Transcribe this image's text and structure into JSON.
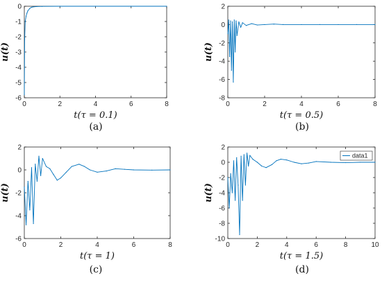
{
  "colors": {
    "series": "#0072BD",
    "axis": "#262626",
    "background": "#ffffff"
  },
  "chart_data": [
    {
      "type": "line",
      "panel_label": "(a)",
      "xlabel": "t(τ = 0.1)",
      "ylabel": "u(t)",
      "xlim": [
        0,
        8
      ],
      "ylim": [
        -6,
        0
      ],
      "xticks": [
        "0",
        "2",
        "4",
        "6",
        "8"
      ],
      "yticks": [
        "-6",
        "-5",
        "-4",
        "-3",
        "-2",
        "-1",
        "0"
      ],
      "legend": [],
      "series": [
        {
          "x": [
            0,
            0.02,
            0.05,
            0.1,
            0.15,
            0.2,
            0.3,
            0.4,
            0.5,
            0.7,
            1.0,
            2,
            4,
            6,
            8
          ],
          "y": [
            -5.8,
            -2.2,
            -1.0,
            -0.65,
            -0.45,
            -0.3,
            -0.15,
            -0.07,
            -0.04,
            -0.02,
            -0.01,
            0,
            0,
            0,
            0
          ]
        }
      ]
    },
    {
      "type": "line",
      "panel_label": "(b)",
      "xlabel": "t(τ = 0.5)",
      "ylabel": "u(t)",
      "xlim": [
        0,
        8
      ],
      "ylim": [
        -8,
        2
      ],
      "xticks": [
        "0",
        "2",
        "4",
        "6",
        "8"
      ],
      "yticks": [
        "-8",
        "-6",
        "-4",
        "-2",
        "0",
        "2"
      ],
      "legend": [],
      "series": [
        {
          "x": [
            0,
            0.05,
            0.1,
            0.15,
            0.2,
            0.25,
            0.3,
            0.35,
            0.4,
            0.45,
            0.5,
            0.6,
            0.7,
            0.8,
            1.0,
            1.3,
            1.6,
            2.0,
            2.5,
            3,
            4,
            5,
            6,
            7,
            8
          ],
          "y": [
            -1.0,
            0.5,
            -3.5,
            0.4,
            -5.0,
            0.3,
            -6.3,
            0.5,
            -3.0,
            0.4,
            -1.2,
            0.3,
            -0.3,
            0.2,
            -0.1,
            0.1,
            -0.05,
            0.0,
            0.05,
            0.0,
            0.0,
            0.0,
            0.0,
            0.0,
            0.0
          ]
        }
      ]
    },
    {
      "type": "line",
      "panel_label": "(c)",
      "xlabel": "t(τ = 1)",
      "ylabel": "u(t)",
      "xlim": [
        0,
        8
      ],
      "ylim": [
        -6,
        2
      ],
      "xticks": [
        "0",
        "2",
        "4",
        "6",
        "8"
      ],
      "yticks": [
        "-6",
        "-4",
        "-2",
        "0",
        "2"
      ],
      "legend": [],
      "series": [
        {
          "x": [
            0,
            0.1,
            0.2,
            0.3,
            0.4,
            0.5,
            0.6,
            0.7,
            0.8,
            0.9,
            1.0,
            1.2,
            1.4,
            1.6,
            1.8,
            2.0,
            2.3,
            2.6,
            3.0,
            3.3,
            3.6,
            4.0,
            4.5,
            5.0,
            5.5,
            6.0,
            7.0,
            8.0
          ],
          "y": [
            -1.5,
            -4.8,
            -1.0,
            -3.5,
            0.2,
            -4.7,
            0.5,
            -1.0,
            1.2,
            -0.5,
            1.0,
            0.3,
            0.1,
            -0.4,
            -0.9,
            -0.7,
            -0.2,
            0.3,
            0.5,
            0.3,
            0.0,
            -0.2,
            -0.1,
            0.1,
            0.05,
            0.0,
            -0.02,
            0.0
          ]
        }
      ]
    },
    {
      "type": "line",
      "panel_label": "(d)",
      "xlabel": "t(τ = 1.5)",
      "ylabel": "u(t)",
      "xlim": [
        0,
        10
      ],
      "ylim": [
        -10,
        2
      ],
      "xticks": [
        "0",
        "2",
        "4",
        "6",
        "8",
        "10"
      ],
      "yticks": [
        "-10",
        "-8",
        "-6",
        "-4",
        "-2",
        "0",
        "2"
      ],
      "legend": [
        "data1"
      ],
      "series": [
        {
          "x": [
            0,
            0.1,
            0.2,
            0.3,
            0.4,
            0.5,
            0.6,
            0.7,
            0.8,
            0.9,
            1.0,
            1.1,
            1.2,
            1.3,
            1.4,
            1.5,
            1.7,
            2.0,
            2.3,
            2.6,
            3.0,
            3.3,
            3.6,
            4.0,
            4.5,
            5.0,
            5.5,
            6.0,
            7.0,
            8.0,
            9.0,
            10.0
          ],
          "y": [
            -2.0,
            -6.0,
            -1.5,
            -4.0,
            0.2,
            -5.0,
            0.6,
            -3.0,
            -9.5,
            0.8,
            -5.0,
            1.0,
            -3.0,
            1.2,
            -0.5,
            0.9,
            0.4,
            0.0,
            -0.5,
            -0.7,
            -0.3,
            0.2,
            0.4,
            0.3,
            0.0,
            -0.2,
            -0.1,
            0.1,
            0.0,
            -0.05,
            0.0,
            0.0
          ]
        }
      ]
    }
  ]
}
